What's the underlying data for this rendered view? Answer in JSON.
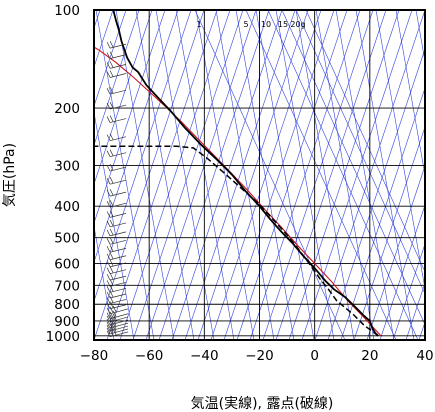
{
  "chart_data": {
    "type": "line",
    "title": "",
    "xlabel": "気温(実線), 露点(破線)",
    "ylabel": "気圧(hPa)",
    "xlim": [
      -80,
      40
    ],
    "ylim": [
      1030,
      100
    ],
    "yscale": "log",
    "grid": true,
    "x_ticks": [
      -80,
      -60,
      -40,
      -20,
      0,
      20,
      40
    ],
    "x_tick_labels": [
      "−80",
      "−60",
      "−40",
      "−20",
      "0",
      "20",
      "40"
    ],
    "y_ticks": [
      100,
      200,
      300,
      400,
      500,
      600,
      700,
      800,
      900,
      1000
    ],
    "y_tick_labels": [
      "100",
      "200",
      "300",
      "400",
      "500",
      "600",
      "700",
      "800",
      "900",
      "1000"
    ],
    "mixing_ratio_labels": [
      "1",
      "5",
      "10",
      "15",
      "20g"
    ],
    "colors": {
      "temperature": "#000000",
      "dewpoint": "#000000",
      "reference": "#cc1122",
      "background_lines": "#3344dd",
      "grid": "#000000"
    },
    "series": [
      {
        "x": [
          23,
          22,
          21,
          20,
          18,
          15,
          11,
          7,
          4,
          0,
          -4,
          -8,
          -12,
          -16,
          -20,
          -25,
          -30,
          -35,
          -41,
          -47,
          -52,
          -57,
          -61,
          -63,
          -64,
          -66,
          -68,
          -70,
          -71,
          -72,
          -72.5,
          -73
        ],
        "y": [
          1000,
          980,
          950,
          900,
          870,
          820,
          760,
          720,
          680,
          620,
          570,
          520,
          480,
          440,
          400,
          360,
          320,
          290,
          260,
          230,
          205,
          185,
          170,
          160,
          155,
          150,
          140,
          125,
          115,
          108,
          104,
          100
        ]
      },
      {
        "x": [
          23,
          21,
          18,
          14,
          8,
          5,
          2,
          -2,
          -6,
          -10,
          -15,
          -20,
          -27,
          -33,
          -39,
          -44,
          -50,
          -75,
          -80
        ],
        "y": [
          1000,
          970,
          930,
          860,
          780,
          720,
          670,
          600,
          540,
          490,
          440,
          395,
          350,
          315,
          285,
          265,
          262,
          262,
          262
        ]
      },
      {
        "x": [
          24,
          18,
          12,
          6,
          0,
          -6,
          -12,
          -18,
          -24,
          -30,
          -36,
          -42,
          -48,
          -54,
          -60,
          -66,
          -72,
          -78,
          -80
        ],
        "y": [
          1000,
          880,
          780,
          680,
          600,
          530,
          465,
          410,
          360,
          318,
          282,
          250,
          222,
          198,
          178,
          160,
          145,
          133,
          130
        ]
      }
    ],
    "wind_barbs": {
      "levels_hPa": [
        1000,
        980,
        960,
        940,
        920,
        900,
        880,
        850,
        820,
        790,
        760,
        730,
        700,
        670,
        640,
        610,
        580,
        550,
        520,
        490,
        460,
        430,
        400,
        370,
        340,
        310,
        280,
        250,
        220,
        200,
        180,
        160,
        150,
        140,
        130
      ],
      "x_position": -72
    }
  }
}
